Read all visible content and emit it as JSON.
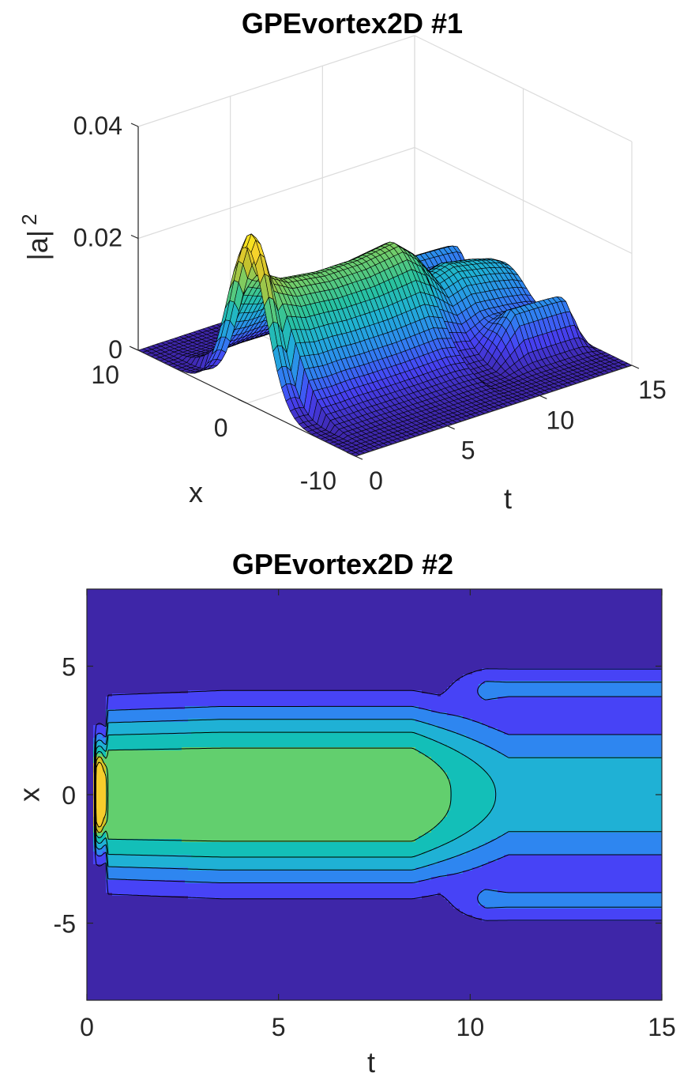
{
  "chart_data": [
    {
      "type": "surface",
      "title": "GPEvortex2D #1",
      "xlabel": "t",
      "ylabel": "x",
      "zlabel": "|a|",
      "zlabel_exponent": "2",
      "xlim": [
        0,
        15
      ],
      "ylim": [
        -10,
        10
      ],
      "zlim": [
        0,
        0.04
      ],
      "xticks": [
        0,
        5,
        10,
        15
      ],
      "yticks": [
        -10,
        0,
        10
      ],
      "zticks": [
        0,
        0.02,
        0.04
      ],
      "xtick_labels": [
        "0",
        "5",
        "10",
        "15"
      ],
      "ytick_labels": [
        "-10",
        "0",
        "10"
      ],
      "ztick_labels": [
        "0",
        "0.02",
        "0.04"
      ],
      "grid": true,
      "colormap": "parula",
      "edgecolor": "#000000",
      "t": [
        0,
        0.25,
        0.5,
        1,
        2,
        4,
        6,
        8,
        9,
        10,
        11,
        12.5,
        13.5,
        14,
        15
      ],
      "peak_profile": [
        0.028,
        0.03,
        0.029,
        0.022,
        0.02,
        0.019,
        0.019,
        0.02,
        0.017,
        0.012,
        0.013,
        0.012,
        0.011,
        0.01,
        0.0
      ],
      "ring": {
        "t_start": 10,
        "t_end": 15,
        "x_center": 5,
        "peak": 0.007
      }
    },
    {
      "type": "contourf",
      "title": "GPEvortex2D #2",
      "xlabel": "t",
      "ylabel": "x",
      "xlim": [
        0,
        15
      ],
      "ylim": [
        -8,
        8
      ],
      "xticks": [
        0,
        5,
        10,
        15
      ],
      "yticks": [
        -5,
        0,
        5
      ],
      "xtick_labels": [
        "0",
        "5",
        "10",
        "15"
      ],
      "ytick_labels": [
        "-5",
        "0",
        "5"
      ],
      "levels": [
        0.0,
        0.0035,
        0.007,
        0.0105,
        0.014,
        0.0175,
        0.021,
        0.0245
      ],
      "colormap": "parula",
      "edgecolor": "#000000"
    }
  ],
  "colors": {
    "parula": [
      "#3e26a8",
      "#4743f6",
      "#2e86f0",
      "#1fb1d5",
      "#28c2a0",
      "#72cd6a",
      "#c4c22e",
      "#f6d12c",
      "#f9fb0e"
    ],
    "axis": "#262626",
    "grid": "#dcdcdc"
  }
}
